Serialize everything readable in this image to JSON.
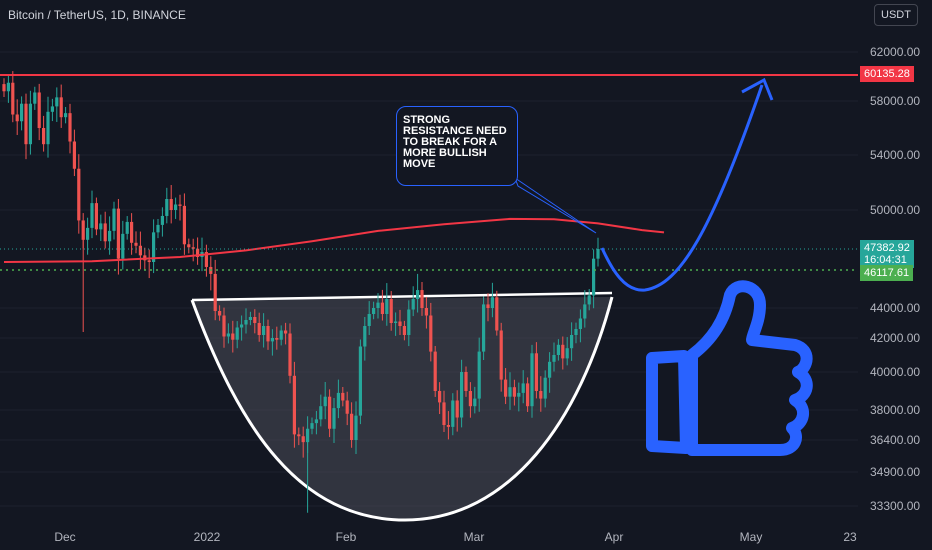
{
  "header": {
    "title": "Bitcoin / TetherUS, 1D, BINANCE",
    "currency": "USDT"
  },
  "annotation": {
    "text": "STRONG RESISTANCE NEED TO BREAK FOR A MORE BULLISH MOVE"
  },
  "colors": {
    "bg": "#131722",
    "up": "#26a69a",
    "down": "#ef5350",
    "resistance": "#f23645",
    "ma": "#f23645",
    "arrow": "#2962ff",
    "cup": "#ffffff",
    "thumb": "#2962ff"
  },
  "price_tags": [
    {
      "value": "60135.28",
      "color": "#f23645"
    },
    {
      "value": "47382.92",
      "sub": "16:04:31",
      "color": "#26a69a"
    },
    {
      "value": "46117.61",
      "color": "#4caf50"
    }
  ],
  "chart_data": {
    "type": "candlestick",
    "symbol": "Bitcoin / TetherUS, 1D, BINANCE",
    "y_tick_labels": [
      "62000.00",
      "58000.00",
      "54000.00",
      "50000.00",
      "44000.00",
      "42000.00",
      "40000.00",
      "38000.00",
      "36400.00",
      "34900.00",
      "33300.00"
    ],
    "x_tick_labels": [
      "Dec",
      "2022",
      "Feb",
      "Mar",
      "Apr",
      "May",
      "23"
    ],
    "resistance_level": 60135.28,
    "last_price": 47382.92,
    "countdown": "16:04:31",
    "secondary_level": 46117.61,
    "cup_rim_level": 45000,
    "ylim": [
      32500,
      64000
    ],
    "closes": [
      58800,
      59500,
      57000,
      56500,
      57800,
      54800,
      57800,
      58700,
      56000,
      54800,
      57200,
      57600,
      58300,
      56800,
      57100,
      55000,
      53000,
      49300,
      48000,
      48800,
      50500,
      48700,
      49100,
      47900,
      48600,
      50100,
      46800,
      48400,
      49200,
      47800,
      47600,
      47000,
      46700,
      46600,
      48500,
      49000,
      49600,
      50800,
      50000,
      50400,
      50300,
      47700,
      47500,
      47400,
      46900,
      47200,
      46300,
      45900,
      43800,
      43500,
      42100,
      42300,
      41900,
      42700,
      42900,
      43200,
      43400,
      43000,
      42200,
      42800,
      41800,
      42000,
      41900,
      42500,
      42300,
      39800,
      36700,
      36600,
      36300,
      37000,
      37300,
      37500,
      38200,
      38700,
      37000,
      38100,
      38900,
      38500,
      37800,
      36400,
      37700,
      41500,
      42800,
      43600,
      44000,
      44300,
      43600,
      44500,
      43000,
      43100,
      42800,
      42200,
      43900,
      44500,
      45000,
      44000,
      43500,
      41200,
      39000,
      38400,
      37200,
      37100,
      38500,
      37600,
      40000,
      39000,
      38200,
      38600,
      41200,
      44200,
      44000,
      44600,
      42500,
      39600,
      38700,
      39200,
      38700,
      38900,
      39400,
      38200,
      41100,
      39000,
      38600,
      39700,
      40600,
      41000,
      41600,
      40800,
      41400,
      42200,
      42600,
      43300,
      44200,
      44700,
      46800,
      47382.92
    ],
    "ma_curve": [
      {
        "t": 0,
        "v": 46600
      },
      {
        "t": 20,
        "v": 46650
      },
      {
        "t": 40,
        "v": 46900
      },
      {
        "t": 55,
        "v": 47300
      },
      {
        "t": 70,
        "v": 47900
      },
      {
        "t": 85,
        "v": 48600
      },
      {
        "t": 100,
        "v": 49050
      },
      {
        "t": 115,
        "v": 49400
      },
      {
        "t": 125,
        "v": 49380
      },
      {
        "t": 135,
        "v": 49100
      },
      {
        "t": 145,
        "v": 48650
      },
      {
        "t": 150,
        "v": 48500
      }
    ]
  }
}
